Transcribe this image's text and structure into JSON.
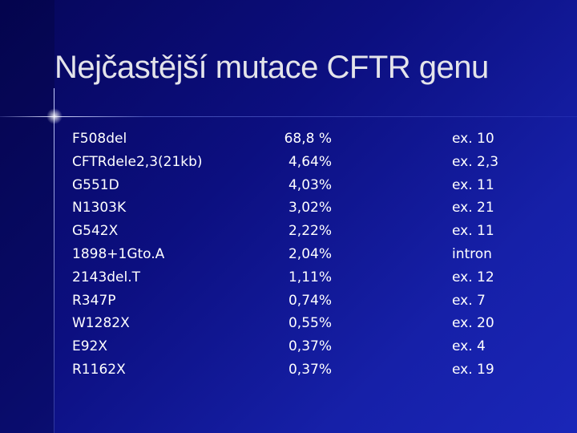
{
  "title": "Nejčastější mutace CFTR genu",
  "table": {
    "rows": [
      [
        "F508del",
        "68,8 %",
        "ex. 10"
      ],
      [
        "CFTRdele2,3(21kb)",
        "4,64%",
        "ex. 2,3"
      ],
      [
        "G551D",
        "4,03%",
        "ex. 11"
      ],
      [
        "N1303K",
        "3,02%",
        "ex. 21"
      ],
      [
        "G542X",
        "2,22%",
        "ex. 11"
      ],
      [
        "1898+1Gto.A",
        "2,04%",
        "intron"
      ],
      [
        "2143del.T",
        "1,11%",
        "ex. 12"
      ],
      [
        "R347P",
        "0,74%",
        "ex. 7"
      ],
      [
        "W1282X",
        "0,55%",
        "ex. 20"
      ],
      [
        "E92X",
        "0,37%",
        "ex. 4"
      ],
      [
        "R1162X",
        "0,37%",
        "ex. 19"
      ]
    ]
  }
}
